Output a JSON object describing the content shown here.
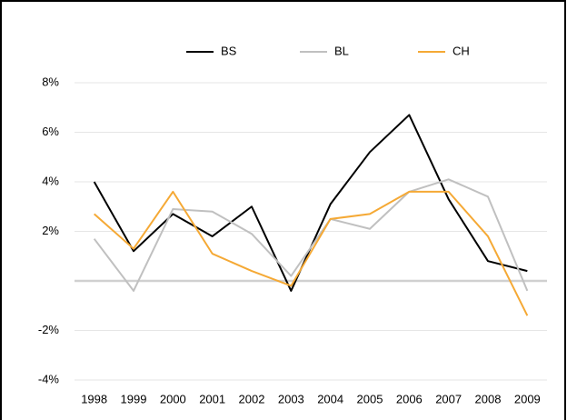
{
  "chart_data": {
    "type": "line",
    "categories": [
      "1998",
      "1999",
      "2000",
      "2001",
      "2002",
      "2003",
      "2004",
      "2005",
      "2006",
      "2007",
      "2008",
      "2009"
    ],
    "series": [
      {
        "name": "BS",
        "color": "#000000",
        "values": [
          4.0,
          1.2,
          2.7,
          1.8,
          3.0,
          -0.4,
          3.1,
          5.2,
          6.7,
          3.3,
          0.8,
          0.4
        ]
      },
      {
        "name": "BL",
        "color": "#c0c0c0",
        "values": [
          1.7,
          -0.4,
          2.9,
          2.8,
          1.9,
          0.2,
          2.5,
          2.1,
          3.6,
          4.1,
          3.4,
          -0.4
        ]
      },
      {
        "name": "CH",
        "color": "#f5a935",
        "values": [
          2.7,
          1.3,
          3.6,
          1.1,
          0.4,
          -0.2,
          2.5,
          2.7,
          3.6,
          3.6,
          1.8,
          -1.4
        ]
      }
    ],
    "ylim": [
      -4,
      8
    ],
    "yticks": [
      {
        "value": -4,
        "label": "-4%"
      },
      {
        "value": -2,
        "label": "-2%"
      },
      {
        "value": 2,
        "label": "2%"
      },
      {
        "value": 4,
        "label": "4%"
      },
      {
        "value": 6,
        "label": "6%"
      },
      {
        "value": 8,
        "label": "8%"
      }
    ],
    "grid": true
  }
}
